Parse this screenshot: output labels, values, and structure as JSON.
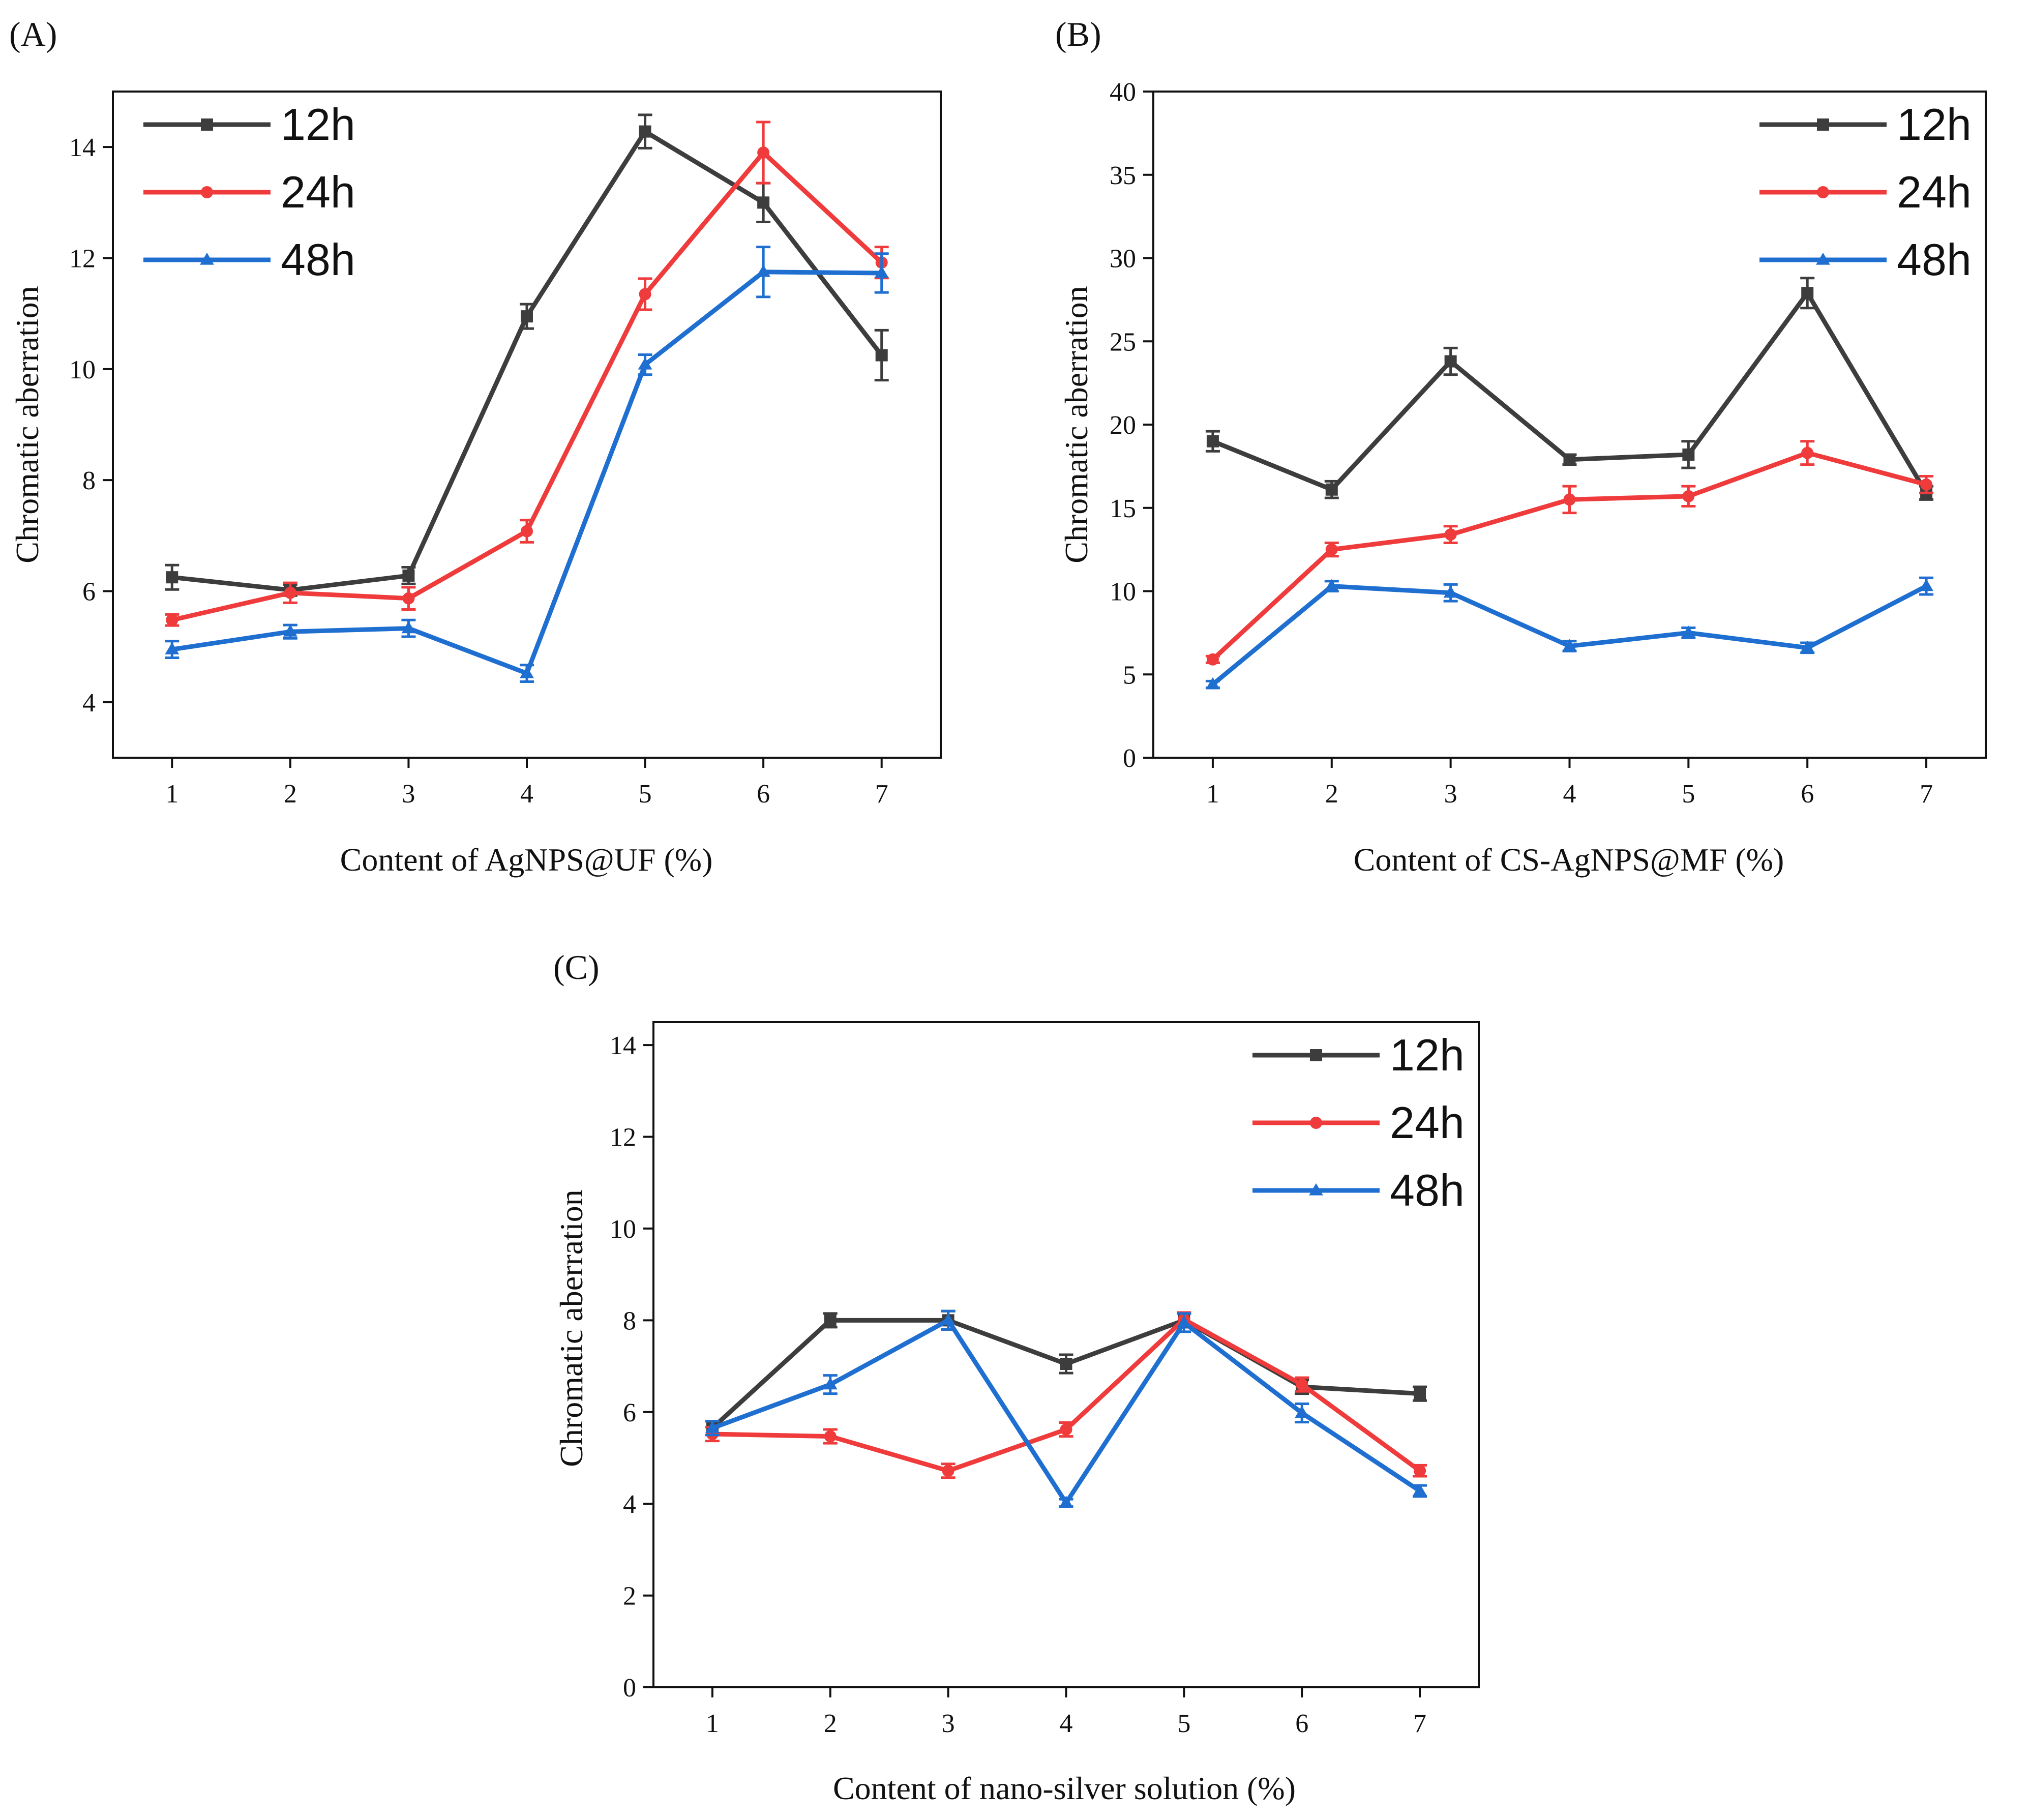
{
  "figure": {
    "panels": [
      "A",
      "B",
      "C"
    ]
  },
  "colors": {
    "s12": "#3d3d3d",
    "s24": "#ef3b3b",
    "s48": "#1f6fd1"
  },
  "chart_data": [
    {
      "id": "A",
      "type": "line",
      "panel_label": "(A)",
      "title": "",
      "xlabel": "Content of AgNPS@UF (%)",
      "ylabel": "Chromatic aberration",
      "x": [
        1,
        2,
        3,
        4,
        5,
        6,
        7
      ],
      "x_ticks": [
        "1",
        "2",
        "3",
        "4",
        "5",
        "6",
        "7"
      ],
      "xlim": [
        0.5,
        7.5
      ],
      "ylim": [
        3.0,
        15.0
      ],
      "y_ticks": [
        4,
        6,
        8,
        10,
        12,
        14
      ],
      "y_tick_labels": [
        "4",
        "6",
        "8",
        "10",
        "12",
        "14"
      ],
      "legend_position": "top-left",
      "series": [
        {
          "name": "12h",
          "marker": "square",
          "color_key": "s12",
          "values": [
            6.25,
            6.02,
            6.28,
            10.95,
            14.28,
            13.0,
            10.25
          ],
          "errors": [
            0.22,
            0.1,
            0.15,
            0.22,
            0.3,
            0.35,
            0.45
          ]
        },
        {
          "name": "24h",
          "marker": "circle",
          "color_key": "s24",
          "values": [
            5.48,
            5.97,
            5.87,
            7.08,
            11.35,
            13.9,
            11.92
          ],
          "errors": [
            0.1,
            0.18,
            0.2,
            0.2,
            0.28,
            0.55,
            0.28
          ]
        },
        {
          "name": "48h",
          "marker": "triangle",
          "color_key": "s48",
          "values": [
            4.95,
            5.27,
            5.33,
            4.52,
            10.08,
            11.75,
            11.73
          ],
          "errors": [
            0.15,
            0.12,
            0.15,
            0.15,
            0.18,
            0.45,
            0.35
          ]
        }
      ]
    },
    {
      "id": "B",
      "type": "line",
      "panel_label": "(B)",
      "title": "",
      "xlabel": "Content of CS-AgNPS@MF (%)",
      "ylabel": "Chromatic aberration",
      "x": [
        1,
        2,
        3,
        4,
        5,
        6,
        7
      ],
      "x_ticks": [
        "1",
        "2",
        "3",
        "4",
        "5",
        "6",
        "7"
      ],
      "xlim": [
        0.5,
        7.5
      ],
      "ylim": [
        0,
        40
      ],
      "y_ticks": [
        0,
        5,
        10,
        15,
        20,
        25,
        30,
        35,
        40
      ],
      "y_tick_labels": [
        "0",
        "5",
        "10",
        "15",
        "20",
        "25",
        "30",
        "35",
        "40"
      ],
      "legend_position": "top-right",
      "series": [
        {
          "name": "12h",
          "marker": "square",
          "color_key": "s12",
          "values": [
            19.0,
            16.1,
            23.8,
            17.9,
            18.2,
            27.9,
            15.9
          ],
          "errors": [
            0.6,
            0.5,
            0.8,
            0.3,
            0.8,
            0.9,
            0.4
          ]
        },
        {
          "name": "24h",
          "marker": "circle",
          "color_key": "s24",
          "values": [
            5.9,
            12.5,
            13.4,
            15.5,
            15.7,
            18.3,
            16.4
          ],
          "errors": [
            0.2,
            0.4,
            0.5,
            0.8,
            0.6,
            0.7,
            0.5
          ]
        },
        {
          "name": "48h",
          "marker": "triangle",
          "color_key": "s48",
          "values": [
            4.4,
            10.3,
            9.9,
            6.7,
            7.5,
            6.6,
            10.3
          ],
          "errors": [
            0.2,
            0.3,
            0.5,
            0.3,
            0.3,
            0.3,
            0.5
          ]
        }
      ]
    },
    {
      "id": "C",
      "type": "line",
      "panel_label": "(C)",
      "title": "",
      "xlabel": "Content of nano-silver solution (%)",
      "ylabel": "Chromatic aberration",
      "x": [
        1,
        2,
        3,
        4,
        5,
        6,
        7
      ],
      "x_ticks": [
        "1",
        "2",
        "3",
        "4",
        "5",
        "6",
        "7"
      ],
      "xlim": [
        0.5,
        7.5
      ],
      "ylim": [
        0,
        14.5
      ],
      "y_ticks": [
        0,
        2,
        4,
        6,
        8,
        10,
        12,
        14
      ],
      "y_tick_labels": [
        "0",
        "2",
        "4",
        "6",
        "8",
        "10",
        "12",
        "14"
      ],
      "legend_position": "top-right",
      "series": [
        {
          "name": "12h",
          "marker": "square",
          "color_key": "s12",
          "values": [
            5.65,
            8.0,
            8.0,
            7.05,
            8.0,
            6.55,
            6.4
          ],
          "errors": [
            0.15,
            0.15,
            0.2,
            0.2,
            0.15,
            0.15,
            0.15
          ]
        },
        {
          "name": "24h",
          "marker": "circle",
          "color_key": "s24",
          "values": [
            5.52,
            5.47,
            4.72,
            5.62,
            8.02,
            6.6,
            4.72
          ],
          "errors": [
            0.15,
            0.15,
            0.15,
            0.15,
            0.15,
            0.15,
            0.12
          ]
        },
        {
          "name": "48h",
          "marker": "triangle",
          "color_key": "s48",
          "values": [
            5.65,
            6.6,
            8.0,
            4.02,
            7.95,
            5.98,
            4.28
          ],
          "errors": [
            0.15,
            0.2,
            0.2,
            0.08,
            0.2,
            0.2,
            0.12
          ]
        }
      ]
    }
  ]
}
